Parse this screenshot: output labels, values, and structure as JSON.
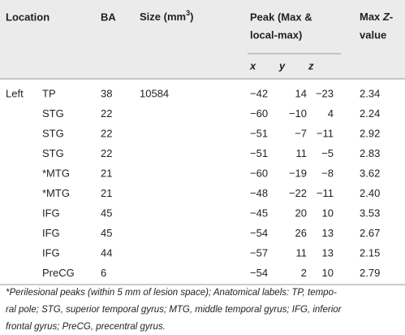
{
  "header": {
    "location": "Location",
    "ba": "BA",
    "size": [
      "Size (mm",
      "3",
      ")"
    ],
    "peak": [
      "Peak (Max &",
      "local-max)"
    ],
    "max_z": [
      "Max ",
      "Z",
      "-",
      "value"
    ],
    "sub": [
      "x",
      "y",
      "z"
    ]
  },
  "table": {
    "rows": [
      [
        "Left",
        "TP",
        "38",
        "10584",
        "−42",
        "14",
        "−23",
        "2.34"
      ],
      [
        null,
        "STG",
        "22",
        null,
        "−60",
        "−10",
        "4",
        "2.24"
      ],
      [
        null,
        "STG",
        "22",
        null,
        "−51",
        "−7",
        "−11",
        "2.92"
      ],
      [
        null,
        "STG",
        "22",
        null,
        "−51",
        "11",
        "−5",
        "2.83"
      ],
      [
        null,
        "*MTG",
        "21",
        null,
        "−60",
        "−19",
        "−8",
        "3.62"
      ],
      [
        null,
        "*MTG",
        "21",
        null,
        "−48",
        "−22",
        "−11",
        "2.40"
      ],
      [
        null,
        "IFG",
        "45",
        null,
        "−45",
        "20",
        "10",
        "3.53"
      ],
      [
        null,
        "IFG",
        "45",
        null,
        "−54",
        "26",
        "13",
        "2.67"
      ],
      [
        null,
        "IFG",
        "44",
        null,
        "−57",
        "11",
        "13",
        "2.15"
      ],
      [
        null,
        "PreCG",
        "6",
        null,
        "−54",
        "2",
        "10",
        "2.79"
      ]
    ]
  },
  "footnote": [
    "*Perilesional peaks (within 5 mm of lesion space); Anatomical labels: TP, tempo-",
    "ral pole; STG, superior temporal gyrus; MTG, middle temporal gyrus; IFG, inferior",
    "frontal gyrus; PreCG, precentral gyrus."
  ]
}
